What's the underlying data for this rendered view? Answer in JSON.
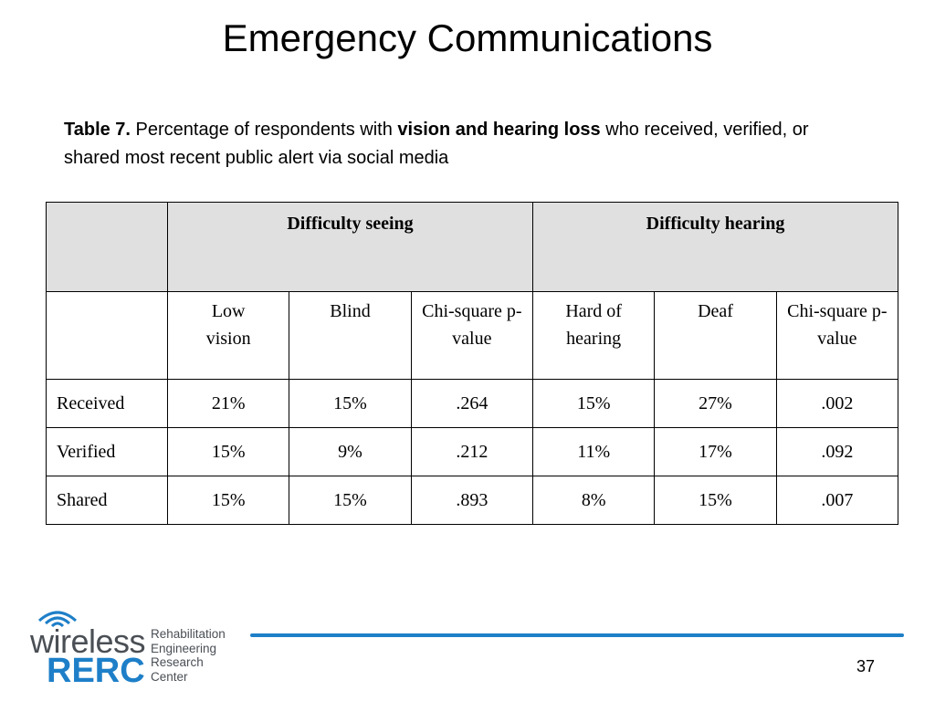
{
  "slide": {
    "title": "Emergency Communications",
    "page_number": "37"
  },
  "caption": {
    "label": "Table 7.",
    "text_before": " Percentage of respondents with ",
    "bold_phrase": "vision and hearing loss",
    "text_after": " who received, verified, or shared most recent public alert via social media"
  },
  "table": {
    "group_headers": [
      "",
      "Difficulty seeing",
      "Difficulty hearing"
    ],
    "sub_headers": [
      "",
      "Low vision",
      "Blind",
      "Chi-square p-value",
      "Hard of hearing",
      "Deaf",
      "Chi-square p-value"
    ],
    "rows": [
      {
        "label": "Received",
        "cells": [
          "21%",
          "15%",
          ".264",
          "15%",
          "27%",
          ".002"
        ]
      },
      {
        "label": "Verified",
        "cells": [
          "15%",
          "9%",
          ".212",
          "11%",
          "17%",
          ".092"
        ]
      },
      {
        "label": "Shared",
        "cells": [
          "15%",
          "15%",
          ".893",
          "8%",
          "15%",
          ".007"
        ]
      }
    ]
  },
  "logo": {
    "word1": "wireless",
    "word2": "RERC",
    "lines": [
      "Rehabilitation",
      "Engineering",
      "Research",
      "Center"
    ],
    "colors": {
      "blue": "#1e7fc8",
      "gray": "#4a4f55"
    }
  }
}
